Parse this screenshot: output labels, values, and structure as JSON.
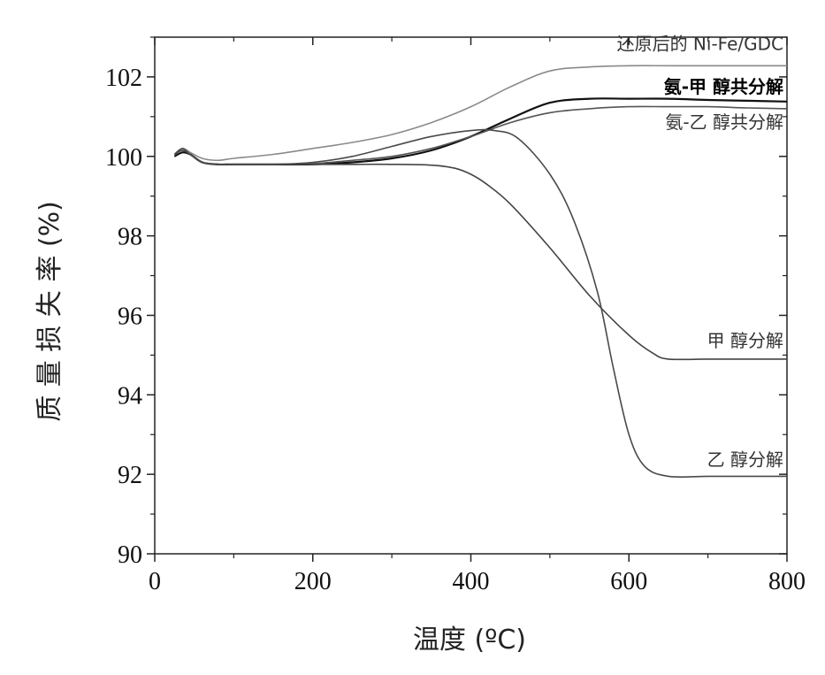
{
  "chart_data": {
    "type": "line",
    "title": "",
    "xlabel": "温度 (ºC)",
    "ylabel": "质 量 损 失 率 (%)",
    "xlim": [
      0,
      800
    ],
    "ylim": [
      90,
      103
    ],
    "x_ticks": [
      "0",
      "200",
      "400",
      "600",
      "800"
    ],
    "y_ticks": [
      "90",
      "92",
      "94",
      "96",
      "98",
      "100",
      "102"
    ],
    "grid": false,
    "series": [
      {
        "name": "还原后的 Ni-Fe/GDC",
        "color": "#8a8a8a",
        "x": [
          25,
          35,
          45,
          60,
          80,
          100,
          150,
          200,
          250,
          300,
          350,
          400,
          450,
          500,
          550,
          600,
          650,
          700,
          750,
          800
        ],
        "y": [
          100.05,
          100.2,
          100.1,
          99.95,
          99.9,
          99.95,
          100.05,
          100.2,
          100.35,
          100.55,
          100.85,
          101.25,
          101.75,
          102.15,
          102.25,
          102.28,
          102.28,
          102.28,
          102.28,
          102.28
        ]
      },
      {
        "name": "氨-甲 醇共分解",
        "color": "#111111",
        "x": [
          25,
          35,
          45,
          60,
          80,
          100,
          150,
          200,
          250,
          300,
          350,
          400,
          450,
          500,
          550,
          600,
          650,
          700,
          750,
          800
        ],
        "y": [
          100.0,
          100.1,
          100.05,
          99.85,
          99.8,
          99.8,
          99.8,
          99.8,
          99.85,
          99.95,
          100.15,
          100.5,
          100.95,
          101.35,
          101.45,
          101.45,
          101.45,
          101.42,
          101.4,
          101.38
        ]
      },
      {
        "name": "氨-乙 醇共分解",
        "color": "#555555",
        "x": [
          25,
          35,
          45,
          60,
          80,
          100,
          150,
          200,
          250,
          300,
          350,
          400,
          450,
          500,
          550,
          600,
          650,
          700,
          750,
          800
        ],
        "y": [
          100.05,
          100.15,
          100.05,
          99.85,
          99.8,
          99.8,
          99.8,
          99.82,
          99.9,
          100.0,
          100.2,
          100.5,
          100.85,
          101.1,
          101.2,
          101.25,
          101.25,
          101.25,
          101.22,
          101.2
        ]
      },
      {
        "name": "甲 醇分解",
        "color": "#444444",
        "x": [
          25,
          35,
          45,
          60,
          80,
          100,
          150,
          200,
          250,
          300,
          350,
          380,
          400,
          420,
          450,
          500,
          550,
          600,
          630,
          650,
          700,
          750,
          800
        ],
        "y": [
          100.05,
          100.15,
          100.05,
          99.85,
          99.8,
          99.8,
          99.8,
          99.8,
          99.8,
          99.8,
          99.78,
          99.7,
          99.55,
          99.3,
          98.8,
          97.7,
          96.5,
          95.5,
          95.05,
          94.9,
          94.9,
          94.9,
          94.9
        ]
      },
      {
        "name": "乙 醇分解",
        "color": "#4a4a4a",
        "x": [
          25,
          35,
          45,
          60,
          80,
          100,
          150,
          200,
          250,
          300,
          350,
          400,
          430,
          460,
          500,
          530,
          560,
          580,
          600,
          620,
          650,
          700,
          750,
          800
        ],
        "y": [
          100.05,
          100.2,
          100.05,
          99.85,
          99.8,
          99.8,
          99.8,
          99.85,
          100.0,
          100.25,
          100.5,
          100.65,
          100.65,
          100.45,
          99.55,
          98.4,
          96.6,
          94.7,
          93.0,
          92.2,
          91.95,
          91.95,
          91.95,
          91.95
        ]
      }
    ],
    "annotations": [
      {
        "text": "还原后的 Ni-Fe/GDC",
        "series": 0,
        "bold": false
      },
      {
        "text": "氨-甲 醇共分解",
        "series": 1,
        "bold": true
      },
      {
        "text": "氨-乙 醇共分解",
        "series": 2,
        "bold": false
      },
      {
        "text": "甲 醇分解",
        "series": 3,
        "bold": false
      },
      {
        "text": "乙 醇分解",
        "series": 4,
        "bold": false
      }
    ]
  }
}
